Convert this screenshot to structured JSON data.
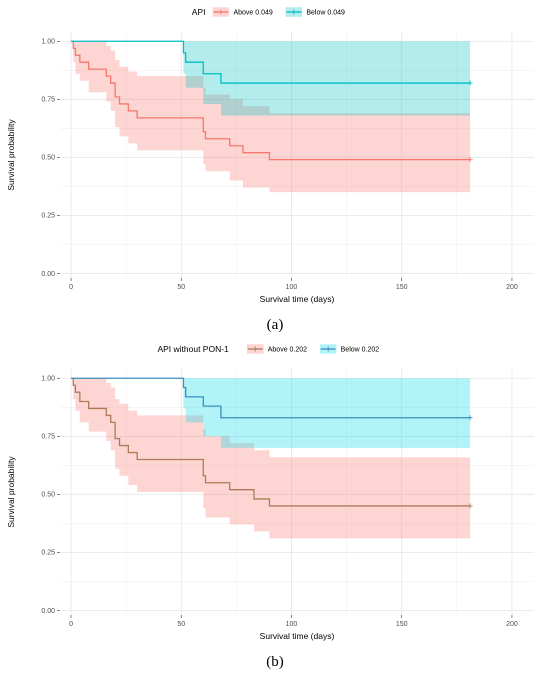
{
  "chart_data": [
    {
      "type": "line",
      "subtype": "kaplan-meier",
      "panel_label": "(a)",
      "legend_title": "API",
      "legend_position": "top",
      "xlabel": "Survival time (days)",
      "ylabel": "Survival probability",
      "xlim": [
        -5,
        210
      ],
      "ylim": [
        -0.02,
        1.04
      ],
      "x_ticks": [
        0,
        50,
        100,
        150,
        200
      ],
      "y_ticks": [
        0.0,
        0.25,
        0.5,
        0.75,
        1.0
      ],
      "x_tick_labels": [
        "0",
        "50",
        "100",
        "150",
        "200"
      ],
      "y_tick_labels": [
        "0.00",
        "0.25",
        "0.50",
        "0.75",
        "1.00"
      ],
      "grid": true,
      "series": [
        {
          "name": "Above 0.049",
          "color": "#f8766d",
          "band_color": "#f8766d",
          "x": [
            0,
            1,
            2,
            4,
            8,
            16,
            18,
            20,
            22,
            26,
            30,
            35,
            60,
            61,
            66,
            72,
            78,
            83,
            90,
            181
          ],
          "y": [
            1.0,
            0.97,
            0.94,
            0.91,
            0.88,
            0.85,
            0.82,
            0.76,
            0.73,
            0.7,
            0.67,
            0.67,
            0.61,
            0.58,
            0.58,
            0.55,
            0.52,
            0.52,
            0.49,
            0.49
          ],
          "lower": [
            1.0,
            0.91,
            0.86,
            0.83,
            0.78,
            0.74,
            0.7,
            0.63,
            0.59,
            0.56,
            0.53,
            0.53,
            0.47,
            0.44,
            0.44,
            0.4,
            0.37,
            0.37,
            0.35,
            0.35
          ],
          "upper": [
            1.0,
            1.0,
            1.0,
            1.0,
            1.0,
            0.98,
            0.96,
            0.92,
            0.89,
            0.87,
            0.85,
            0.85,
            0.8,
            0.77,
            0.77,
            0.75,
            0.72,
            0.72,
            0.69,
            0.69
          ],
          "censor_x": [
            181
          ]
        },
        {
          "name": "Below 0.049",
          "color": "#00bfc4",
          "band_color": "#00bfc4",
          "x": [
            0,
            51,
            52,
            60,
            68,
            181
          ],
          "y": [
            1.0,
            0.95,
            0.91,
            0.86,
            0.82,
            0.82
          ],
          "lower": [
            1.0,
            0.86,
            0.8,
            0.73,
            0.68,
            0.68
          ],
          "upper": [
            1.0,
            1.0,
            1.0,
            1.0,
            1.0,
            1.0
          ],
          "censor_x": [
            181
          ]
        }
      ]
    },
    {
      "type": "line",
      "subtype": "kaplan-meier",
      "panel_label": "(b)",
      "legend_title": "API without PON-1",
      "legend_position": "top",
      "xlabel": "Survival time (days)",
      "ylabel": "Survival probability",
      "xlim": [
        -5,
        210
      ],
      "ylim": [
        -0.02,
        1.04
      ],
      "x_ticks": [
        0,
        50,
        100,
        150,
        200
      ],
      "y_ticks": [
        0.0,
        0.25,
        0.5,
        0.75,
        1.0
      ],
      "x_tick_labels": [
        "0",
        "50",
        "100",
        "150",
        "200"
      ],
      "y_tick_labels": [
        "0.00",
        "0.25",
        "0.50",
        "0.75",
        "1.00"
      ],
      "grid": true,
      "series": [
        {
          "name": "Above 0.202",
          "color": "#b07a5a",
          "band_color": "#f8766d",
          "x": [
            0,
            1,
            2,
            4,
            8,
            16,
            18,
            20,
            22,
            26,
            30,
            35,
            60,
            61,
            66,
            72,
            78,
            83,
            90,
            181
          ],
          "y": [
            1.0,
            0.97,
            0.94,
            0.9,
            0.87,
            0.84,
            0.81,
            0.74,
            0.71,
            0.68,
            0.65,
            0.65,
            0.58,
            0.55,
            0.55,
            0.52,
            0.52,
            0.48,
            0.45,
            0.45
          ],
          "lower": [
            1.0,
            0.91,
            0.86,
            0.81,
            0.77,
            0.73,
            0.69,
            0.61,
            0.58,
            0.54,
            0.51,
            0.51,
            0.44,
            0.4,
            0.4,
            0.37,
            0.37,
            0.34,
            0.31,
            0.31
          ],
          "upper": [
            1.0,
            1.0,
            1.0,
            1.0,
            1.0,
            0.98,
            0.96,
            0.91,
            0.89,
            0.86,
            0.84,
            0.84,
            0.78,
            0.75,
            0.75,
            0.72,
            0.72,
            0.69,
            0.66,
            0.66
          ],
          "censor_x": [
            181
          ]
        },
        {
          "name": "Below 0.202",
          "color": "#3a8fbf",
          "band_color": "#00d8e8",
          "x": [
            0,
            51,
            52,
            60,
            68,
            181
          ],
          "y": [
            1.0,
            0.96,
            0.92,
            0.88,
            0.83,
            0.83
          ],
          "lower": [
            1.0,
            0.87,
            0.81,
            0.75,
            0.7,
            0.7
          ],
          "upper": [
            1.0,
            1.0,
            1.0,
            1.0,
            1.0,
            1.0
          ],
          "censor_x": [
            181
          ]
        }
      ]
    }
  ]
}
